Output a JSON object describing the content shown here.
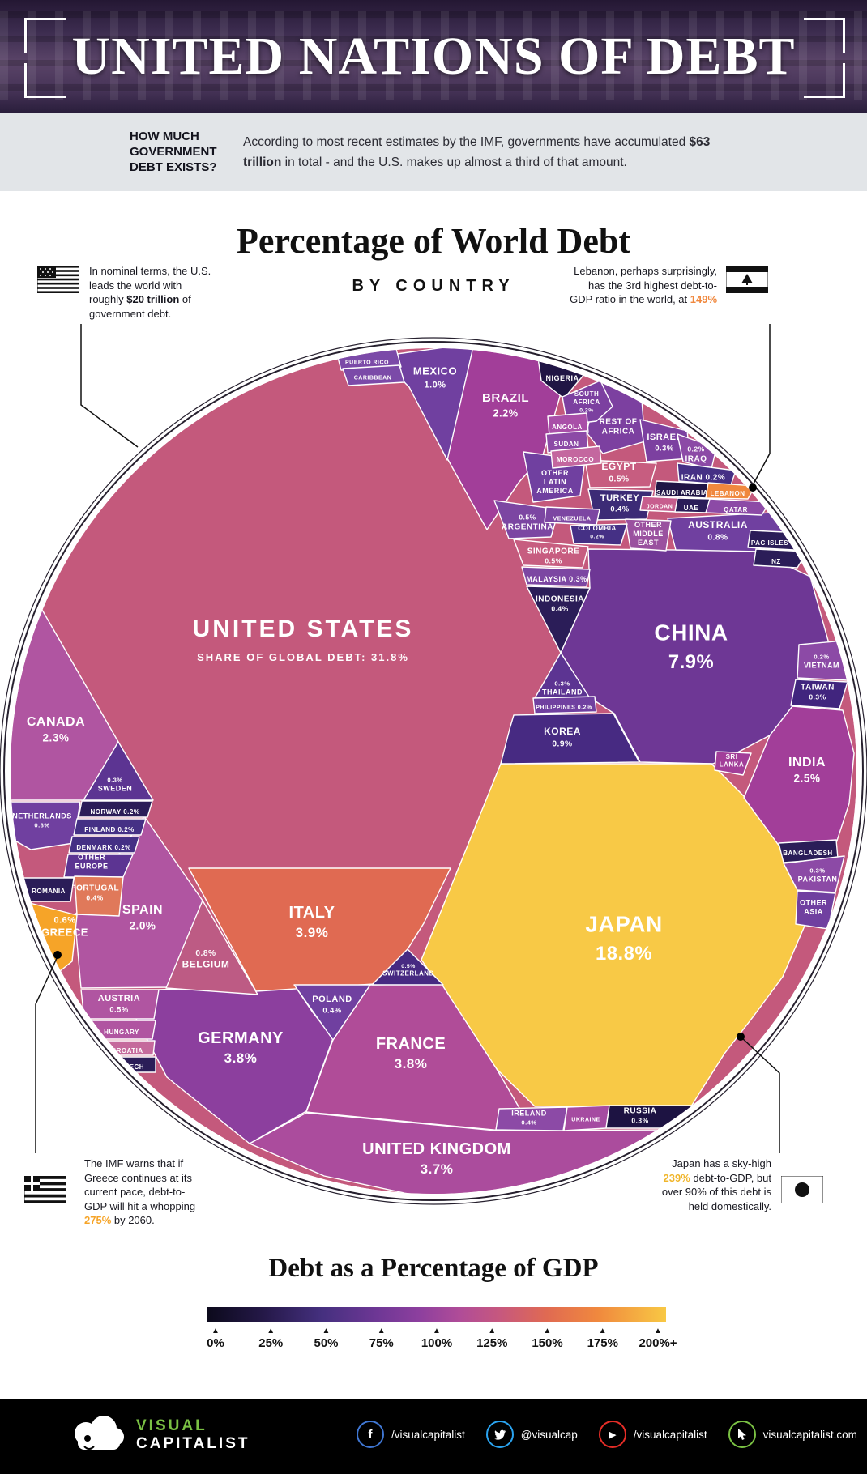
{
  "header": {
    "title": "UNITED NATIONS OF DEBT"
  },
  "intro": {
    "question": "HOW MUCH GOVERNMENT DEBT EXISTS?",
    "description_pre": "According to most recent estimates by the IMF, governments have accumulated ",
    "description_bold": "$63 trillion",
    "description_post": " in total - and the U.S. makes up almost a third of that amount."
  },
  "chart": {
    "title": "Percentage of World Debt",
    "subtitle": "BY COUNTRY"
  },
  "annotations": {
    "us": {
      "pre": "In nominal terms, the U.S. leads the world with roughly ",
      "highlight": "$20 trillion",
      "post": " of government debt."
    },
    "lebanon": {
      "pre": "Lebanon, perhaps surprisingly, has the 3rd highest debt-to-GDP ratio in the world, at ",
      "highlight": "149%",
      "post": "",
      "highlight_color": "#f0883e"
    },
    "greece": {
      "pre": "The IMF warns that if Greece continues at its current pace, debt-to-GDP will hit a whopping ",
      "highlight": "275%",
      "post": " by 2060.",
      "highlight_color": "#f6a428"
    },
    "japan": {
      "pre": "Japan has a sky-high ",
      "highlight": "239%",
      "post": " debt-to-GDP, but over 90% of this debt is held domestically.",
      "highlight_color": "#f0b52a"
    }
  },
  "chart_data": {
    "type": "voronoi-circle",
    "title": "Percentage of World Debt by Country",
    "note": "cell color encodes debt as a percentage of GDP; cell area encodes share of global government debt",
    "cells": [
      {
        "id": "united-states",
        "name": "UNITED STATES",
        "value": "31.8%",
        "label": "SHARE OF GLOBAL DEBT: 31.8%",
        "color": "#c4597c"
      },
      {
        "id": "china",
        "name": "CHINA",
        "value": "7.9%",
        "color": "#6e3795"
      },
      {
        "id": "japan",
        "name": "JAPAN",
        "value": "18.8%",
        "color": "#f8c946"
      },
      {
        "id": "canada",
        "name": "CANADA",
        "value": "2.3%",
        "color": "#b055a1"
      },
      {
        "id": "united-kingdom",
        "name": "UNITED KINGDOM",
        "value": "3.7%",
        "color": "#ab4c9d"
      },
      {
        "id": "germany",
        "name": "GERMANY",
        "value": "3.8%",
        "color": "#8c3f9e"
      },
      {
        "id": "france",
        "name": "FRANCE",
        "value": "3.8%",
        "color": "#b04c98"
      },
      {
        "id": "italy",
        "name": "ITALY",
        "value": "3.9%",
        "color": "#e06a52"
      },
      {
        "id": "spain",
        "name": "SPAIN",
        "value": "2.0%",
        "color": "#b055a1"
      },
      {
        "id": "india",
        "name": "INDIA",
        "value": "2.5%",
        "color": "#a23e99"
      },
      {
        "id": "brazil",
        "name": "BRAZIL",
        "value": "2.2%",
        "color": "#a23e99"
      },
      {
        "id": "mexico",
        "name": "MEXICO",
        "value": "1.0%",
        "color": "#7040a0"
      },
      {
        "id": "korea",
        "name": "KOREA",
        "value": "0.9%",
        "color": "#472a82"
      },
      {
        "id": "australia",
        "name": "AUSTRALIA",
        "value": "0.8%",
        "color": "#7040a0"
      },
      {
        "id": "egypt",
        "name": "EGYPT",
        "value": "0.5%",
        "color": "#c75d80"
      },
      {
        "id": "turkey",
        "name": "TURKEY",
        "value": "0.4%",
        "color": "#3c2b76"
      },
      {
        "id": "rest-of-africa",
        "name": "REST OF\nAFRICA",
        "value": "",
        "color": "#7c40a0"
      },
      {
        "id": "other-latin-america",
        "name": "OTHER\nLATIN\nAMERICA",
        "value": "",
        "color": "#7040a0"
      },
      {
        "id": "argentina",
        "name": "ARGENTINA",
        "value": "0.5%",
        "color": "#7c46a2"
      },
      {
        "id": "other-middle-east",
        "name": "OTHER\nMIDDLE\nEAST",
        "value": "",
        "color": "#9a519f"
      },
      {
        "id": "singapore",
        "name": "SINGAPORE",
        "value": "0.5%",
        "color": "#c75d80"
      },
      {
        "id": "malaysia",
        "name": "MALAYSIA",
        "value": "0.3%",
        "color": "#7c46a2"
      },
      {
        "id": "indonesia",
        "name": "INDONESIA",
        "value": "0.4%",
        "color": "#2b1d58"
      },
      {
        "id": "thailand",
        "name": "THAILAND",
        "value": "0.3%",
        "color": "#5c3492"
      },
      {
        "id": "belgium",
        "name": "BELGIUM",
        "value": "0.8%",
        "color": "#bd5b84"
      },
      {
        "id": "austria",
        "name": "AUSTRIA",
        "value": "0.5%",
        "color": "#b055a1"
      },
      {
        "id": "poland",
        "name": "POLAND",
        "value": "0.4%",
        "color": "#7040a0"
      },
      {
        "id": "switzerland",
        "name": "SWITZERLAND",
        "value": "0.5%",
        "color": "#472a82"
      },
      {
        "id": "netherlands",
        "name": "NETHERLANDS",
        "value": "0.8%",
        "color": "#7040a0"
      },
      {
        "id": "sweden",
        "name": "SWEDEN",
        "value": "0.3%",
        "color": "#5c3492"
      },
      {
        "id": "other-europe",
        "name": "OTHER\nEUROPE",
        "value": "",
        "color": "#5c3492"
      },
      {
        "id": "portugal",
        "name": "PORTUGAL",
        "value": "0.4%",
        "color": "#e0795a"
      },
      {
        "id": "greece",
        "name": "GREECE",
        "value": "0.6%",
        "color": "#f6a428"
      },
      {
        "id": "romania",
        "name": "ROMANIA",
        "value": "",
        "color": "#2b1d58"
      },
      {
        "id": "ireland",
        "name": "IRELAND",
        "value": "0.4%",
        "color": "#8c4aa6"
      },
      {
        "id": "ukraine",
        "name": "UKRAINE",
        "value": "",
        "color": "#a54ba1"
      },
      {
        "id": "russia",
        "name": "RUSSIA",
        "value": "0.3%",
        "color": "#1d1342"
      },
      {
        "id": "vietnam",
        "name": "VIETNAM",
        "value": "0.2%",
        "color": "#8c4aa6"
      },
      {
        "id": "taiwan",
        "name": "TAIWAN",
        "value": "0.3%",
        "color": "#41257e"
      },
      {
        "id": "sri-lanka",
        "name": "SRI\nLANKA",
        "value": "",
        "color": "#a23e99"
      },
      {
        "id": "bangladesh",
        "name": "BANGLADESH",
        "value": "",
        "color": "#2b1d58"
      },
      {
        "id": "pakistan",
        "name": "PAKISTAN",
        "value": "0.3%",
        "color": "#8c4aa6"
      },
      {
        "id": "other-asia",
        "name": "OTHER\nASIA",
        "value": "",
        "color": "#7040a0"
      },
      {
        "id": "israel",
        "name": "ISRAEL",
        "value": "0.3%",
        "color": "#7c40a0"
      },
      {
        "id": "iraq",
        "name": "IRAQ",
        "value": "0.2%",
        "color": "#8c4aa6"
      },
      {
        "id": "iran",
        "name": "IRAN",
        "value": "0.2%",
        "color": "#453085"
      },
      {
        "id": "saudi-arabia",
        "name": "SAUDI ARABIA",
        "value": "",
        "color": "#201545"
      },
      {
        "id": "lebanon",
        "name": "LEBANON",
        "value": "",
        "color": "#f0883e"
      },
      {
        "id": "jordan",
        "name": "JORDAN",
        "value": "",
        "color": "#c75d8e"
      },
      {
        "id": "uae",
        "name": "UAE",
        "value": "",
        "color": "#2b1d58"
      },
      {
        "id": "qatar",
        "name": "QATAR",
        "value": "",
        "color": "#8c4aa6"
      },
      {
        "id": "nigeria",
        "name": "NIGERIA",
        "value": "",
        "color": "#201545"
      },
      {
        "id": "south-africa",
        "name": "SOUTH\nAFRICA",
        "value": "0.2%",
        "color": "#7c40a0"
      },
      {
        "id": "angola",
        "name": "ANGOLA",
        "value": "",
        "color": "#a94fa8"
      },
      {
        "id": "sudan",
        "name": "SUDAN",
        "value": "",
        "color": "#8c4aa6"
      },
      {
        "id": "morocco",
        "name": "MOROCCO",
        "value": "",
        "color": "#c4679f"
      },
      {
        "id": "puerto-rico",
        "name": "PUERTO RICO",
        "value": "",
        "color": "#7b4aa8"
      },
      {
        "id": "caribbean",
        "name": "CARIBBEAN",
        "value": "",
        "color": "#7b4aa8"
      },
      {
        "id": "venezuela",
        "name": "VENEZUELA",
        "value": "",
        "color": "#7c46a2"
      },
      {
        "id": "colombia",
        "name": "COLOMBIA",
        "value": "0.2%",
        "color": "#453085"
      },
      {
        "id": "philippines",
        "name": "PHILIPPINES",
        "value": "0.2%",
        "color": "#7040a0"
      },
      {
        "id": "norway",
        "name": "NORWAY",
        "value": "0.2%",
        "color": "#2b1d58"
      },
      {
        "id": "finland",
        "name": "FINLAND",
        "value": "0.2%",
        "color": "#453085"
      },
      {
        "id": "denmark",
        "name": "DENMARK",
        "value": "0.2%",
        "color": "#453085"
      },
      {
        "id": "hungary",
        "name": "HUNGARY",
        "value": "",
        "color": "#b055a1"
      },
      {
        "id": "croatia",
        "name": "CROATIA",
        "value": "",
        "color": "#c56a9c"
      },
      {
        "id": "czech",
        "name": "CZECH",
        "value": "",
        "color": "#2b1d58"
      },
      {
        "id": "nz",
        "name": "NZ",
        "value": "",
        "color": "#2b1d58"
      },
      {
        "id": "pac-isles",
        "name": "PAC ISLES",
        "value": "",
        "color": "#2b1d58"
      }
    ]
  },
  "legend": {
    "title": "Debt as a Percentage of GDP",
    "ticks": [
      "0%",
      "25%",
      "50%",
      "75%",
      "100%",
      "125%",
      "150%",
      "175%",
      "200%+"
    ],
    "gradient": [
      "#0c0a1c",
      "#241847",
      "#45307f",
      "#6e3795",
      "#8c3f9e",
      "#b04c98",
      "#c7587d",
      "#e06a52",
      "#f0883e",
      "#f8c844"
    ]
  },
  "footer": {
    "brand_top": "VISUAL",
    "brand_bottom": "CAPITALIST",
    "socials": [
      {
        "name": "facebook",
        "label": "/visualcapitalist",
        "color": "#3f76d2"
      },
      {
        "name": "twitter",
        "label": "@visualcap",
        "color": "#2aa3ef"
      },
      {
        "name": "youtube",
        "label": "/visualcapitalist",
        "color": "#e52d27"
      },
      {
        "name": "website",
        "label": "visualcapitalist.com",
        "color": "#7ac143"
      }
    ]
  }
}
